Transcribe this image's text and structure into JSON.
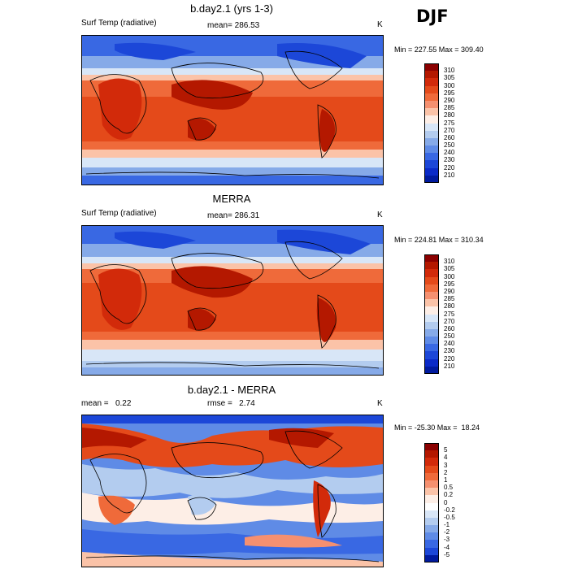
{
  "season": "DJF",
  "panels": [
    {
      "title": "b.day2.1 (yrs 1-3)",
      "left_label": "Surf Temp (radiative)",
      "center_label": "mean= 286.53",
      "units": "K",
      "minmax": "Min = 227.55 Max = 309.40",
      "colorbar": {
        "labels": [
          "310",
          "305",
          "300",
          "295",
          "290",
          "285",
          "280",
          "275",
          "270",
          "260",
          "250",
          "240",
          "230",
          "220",
          "210"
        ],
        "colors": [
          "#8b0000",
          "#b41800",
          "#d22a0a",
          "#e44a1a",
          "#ef6a3a",
          "#f59070",
          "#fbc3a8",
          "#fdeee6",
          "#d8e6f7",
          "#b3ccef",
          "#86aae8",
          "#5f8be6",
          "#3968e3",
          "#1c47d8",
          "#0a2ac8",
          "#001a9e"
        ]
      }
    },
    {
      "title": "MERRA",
      "left_label": "Surf Temp (radiative)",
      "center_label": "mean= 286.31",
      "units": "K",
      "minmax": "Min = 224.81 Max = 310.34",
      "colorbar": {
        "labels": [
          "310",
          "305",
          "300",
          "295",
          "290",
          "285",
          "280",
          "275",
          "270",
          "260",
          "250",
          "240",
          "230",
          "220",
          "210"
        ],
        "colors": [
          "#8b0000",
          "#b41800",
          "#d22a0a",
          "#e44a1a",
          "#ef6a3a",
          "#f59070",
          "#fbc3a8",
          "#fdeee6",
          "#d8e6f7",
          "#b3ccef",
          "#86aae8",
          "#5f8be6",
          "#3968e3",
          "#1c47d8",
          "#0a2ac8",
          "#001a9e"
        ]
      }
    },
    {
      "title": "b.day2.1 - MERRA",
      "left_label": "mean =   0.22",
      "center_label": "rmse =   2.74",
      "units": "K",
      "minmax": "Min = -25.30 Max =  18.24",
      "colorbar": {
        "labels": [
          "5",
          "4",
          "3",
          "2",
          "1",
          "0.5",
          "0.2",
          "0",
          "-0.2",
          "-0.5",
          "-1",
          "-2",
          "-3",
          "-4",
          "-5"
        ],
        "colors": [
          "#8b0000",
          "#b41800",
          "#d22a0a",
          "#e44a1a",
          "#ef6a3a",
          "#f59070",
          "#fbc3a8",
          "#fdeee6",
          "#ffffff",
          "#d8e6f7",
          "#b3ccef",
          "#86aae8",
          "#5f8be6",
          "#3968e3",
          "#1c47d8",
          "#001a9e"
        ]
      }
    }
  ]
}
